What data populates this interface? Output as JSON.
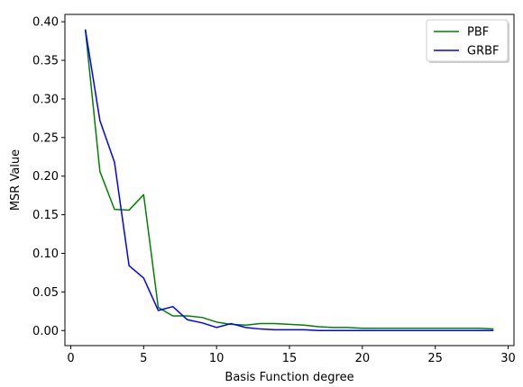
{
  "chart_data": {
    "type": "line",
    "title": "",
    "xlabel": "Basis Function degree",
    "ylabel": "MSR Value",
    "xlim": [
      -0.4,
      30.4
    ],
    "ylim": [
      -0.0195,
      0.4095
    ],
    "xticks": [
      0,
      5,
      10,
      15,
      20,
      25,
      30
    ],
    "yticks": [
      0.0,
      0.05,
      0.1,
      0.15,
      0.2,
      0.25,
      0.3,
      0.35,
      0.4
    ],
    "xtick_labels": [
      "0",
      "5",
      "10",
      "15",
      "20",
      "25",
      "30"
    ],
    "ytick_labels": [
      "0.00",
      "0.05",
      "0.10",
      "0.15",
      "0.20",
      "0.25",
      "0.30",
      "0.35",
      "0.40"
    ],
    "grid": false,
    "legend_position": "top-right",
    "x": [
      1,
      2,
      3,
      4,
      5,
      6,
      7,
      8,
      9,
      10,
      11,
      12,
      13,
      14,
      15,
      16,
      17,
      18,
      19,
      20,
      21,
      22,
      23,
      24,
      25,
      26,
      27,
      28,
      29
    ],
    "series": [
      {
        "name": "PBF",
        "color": "#008000",
        "values": [
          0.39,
          0.206,
          0.157,
          0.156,
          0.176,
          0.03,
          0.019,
          0.019,
          0.017,
          0.011,
          0.008,
          0.007,
          0.009,
          0.009,
          0.008,
          0.007,
          0.005,
          0.004,
          0.004,
          0.003,
          0.003,
          0.003,
          0.003,
          0.003,
          0.003,
          0.003,
          0.003,
          0.003,
          0.002
        ]
      },
      {
        "name": "GRBF",
        "color": "#0000ff",
        "values": [
          0.39,
          0.272,
          0.218,
          0.084,
          0.068,
          0.026,
          0.031,
          0.014,
          0.01,
          0.004,
          0.009,
          0.004,
          0.002,
          0.001,
          0.001,
          0.001,
          0.0,
          0.0,
          0.0,
          0.0,
          0.0,
          0.0,
          0.0,
          0.0,
          0.0,
          0.0,
          0.0,
          0.0,
          0.0
        ]
      }
    ]
  }
}
